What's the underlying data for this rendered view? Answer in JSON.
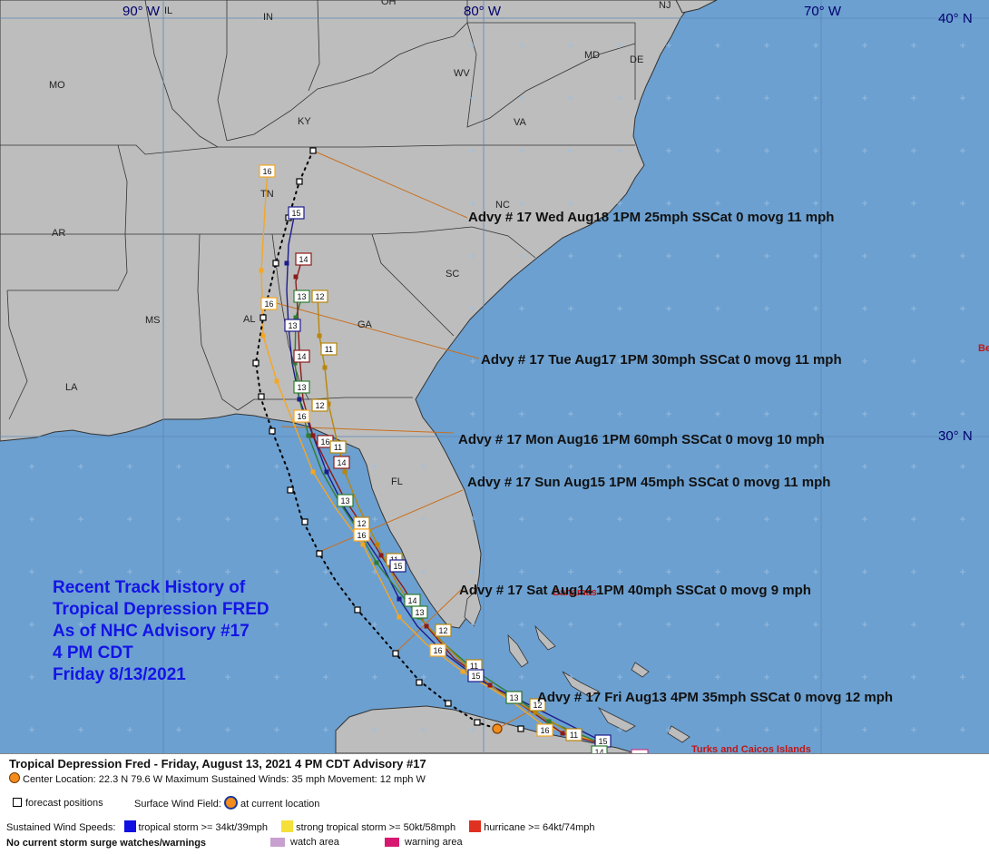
{
  "map": {
    "meridians": [
      "90° W",
      "80° W",
      "70° W"
    ],
    "parallels": [
      "40° N",
      "30° N"
    ],
    "states": [
      "IL",
      "IN",
      "OH",
      "MO",
      "KY",
      "WV",
      "MD",
      "DE",
      "NJ",
      "VA",
      "NC",
      "AR",
      "TN",
      "SC",
      "MS",
      "AL",
      "GA",
      "LA",
      "FL"
    ],
    "places": [
      "Bahamas",
      "Turks and Caicos Islands",
      "Be"
    ],
    "title_lines": [
      "Recent Track History of",
      "Tropical Depression FRED",
      "As of NHC Advisory #17",
      "4 PM CDT",
      "Friday 8/13/2021"
    ],
    "advisories": [
      "Advy # 17 Wed Aug18 1PM  25mph SSCat 0 movg 11 mph",
      "Advy # 17 Tue Aug17 1PM  30mph SSCat 0 movg 11 mph",
      "Advy # 17 Mon Aug16 1PM  60mph SSCat 0 movg 10 mph",
      "Advy # 17 Sun Aug15 1PM  45mph SSCat 0 movg 11 mph",
      "Advy # 17 Sat Aug14 1PM  40mph SSCat 0 movg 9 mph",
      "Advy # 17 Fri Aug13 4PM  35mph SSCat 0 movg 12 mph"
    ],
    "track_colors": {
      "orange": "#f5a623",
      "navy": "#1c1c8c",
      "green": "#2e7d32",
      "dark_red": "#8b1a1a",
      "olive": "#b8860b"
    },
    "track_day_labels": [
      "16",
      "15",
      "14",
      "13",
      "12",
      "11"
    ]
  },
  "legend": {
    "header": "Tropical Depression Fred  -  Friday, August 13, 2021  4 PM CDT   Advisory #17",
    "center_line": "Center Location: 22.3 N  79.6 W   Maximum Sustained Winds: 35 mph   Movement: 12 mph W",
    "forecast_positions": "forecast positions",
    "surface_wind_field": "Surface Wind Field:",
    "at_current_location": "at current location",
    "sustained_wind_speeds": "Sustained Wind Speeds:",
    "tropical_storm": "tropical storm >= 34kt/39mph",
    "strong_tropical_storm": "strong tropical storm >= 50kt/58mph",
    "hurricane": "hurricane >= 64kt/74mph",
    "no_surge": "No current storm surge watches/warnings",
    "watch_area": "watch area",
    "warning_area": "warning area",
    "colors": {
      "tropical_storm": "#1010e0",
      "strong_tropical_storm": "#f5e03a",
      "hurricane": "#e03020",
      "watch_area": "#c8a0d0",
      "warning_area": "#d81870"
    }
  }
}
